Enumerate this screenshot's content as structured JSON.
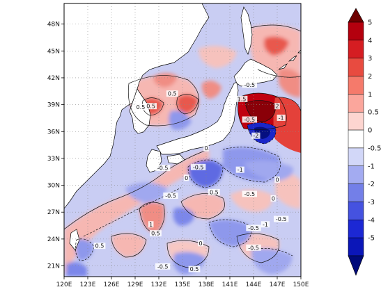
{
  "map": {
    "lon_ticks": [
      "120E",
      "123E",
      "126E",
      "129E",
      "132E",
      "135E",
      "138E",
      "141E",
      "144E",
      "147E",
      "150E"
    ],
    "lat_ticks": [
      "21N",
      "24N",
      "27N",
      "30N",
      "33N",
      "36N",
      "39N",
      "42N",
      "45N",
      "48N"
    ],
    "contour_labels": [
      {
        "text": "0.5",
        "lon": 133.7,
        "lat": 40.2
      },
      {
        "text": "0.5",
        "lon": 131.0,
        "lat": 38.8
      },
      {
        "text": "0.5",
        "lon": 129.7,
        "lat": 38.7
      },
      {
        "text": "-0.5",
        "lon": 143.5,
        "lat": 41.2
      },
      {
        "text": "1.5",
        "lon": 142.5,
        "lat": 39.6
      },
      {
        "text": "2",
        "lon": 147.0,
        "lat": 38.8
      },
      {
        "text": "-0.5",
        "lon": 143.5,
        "lat": 37.3
      },
      {
        "text": "-1",
        "lon": 147.5,
        "lat": 37.5
      },
      {
        "text": "-2",
        "lon": 144.3,
        "lat": 35.5
      },
      {
        "text": "0",
        "lon": 138.0,
        "lat": 34.1
      },
      {
        "text": "-0.5",
        "lon": 137.0,
        "lat": 32.0
      },
      {
        "text": "-0.5",
        "lon": 132.5,
        "lat": 31.9
      },
      {
        "text": "0",
        "lon": 135.5,
        "lat": 30.8
      },
      {
        "text": "-0.5",
        "lon": 133.5,
        "lat": 28.8
      },
      {
        "text": "0.5",
        "lon": 139.0,
        "lat": 29.2
      },
      {
        "text": "-0.5",
        "lon": 143.5,
        "lat": 29.0
      },
      {
        "text": "-1",
        "lon": 142.3,
        "lat": 31.7
      },
      {
        "text": "0",
        "lon": 147.0,
        "lat": 30.6
      },
      {
        "text": "1",
        "lon": 131.0,
        "lat": 25.6
      },
      {
        "text": "0.5",
        "lon": 131.6,
        "lat": 24.6
      },
      {
        "text": "-0.5",
        "lon": 144.0,
        "lat": 25.2
      },
      {
        "text": "-1",
        "lon": 145.5,
        "lat": 25.6
      },
      {
        "text": "-0.5",
        "lon": 147.5,
        "lat": 26.2
      },
      {
        "text": "0.5",
        "lon": 124.5,
        "lat": 23.2
      },
      {
        "text": "-0.5",
        "lon": 132.5,
        "lat": 20.9
      },
      {
        "text": "0.5",
        "lon": 136.5,
        "lat": 20.6
      },
      {
        "text": "0",
        "lon": 137.3,
        "lat": 23.5
      },
      {
        "text": "-0.5",
        "lon": 144.0,
        "lat": 23.0
      },
      {
        "text": "0",
        "lon": 146.5,
        "lat": 28.5
      }
    ]
  },
  "colorbar": {
    "levels": [
      "5",
      "4",
      "3",
      "2",
      "1",
      "0.5",
      "0",
      "-0.5",
      "-1",
      "-2",
      "-3",
      "-4",
      "-5"
    ],
    "colors": [
      "#b4000e",
      "#d51d22",
      "#e84b40",
      "#f57a6b",
      "#fba69c",
      "#fdd5d0",
      "#ffffff",
      "#d2d7f8",
      "#a3abf1",
      "#737fe8",
      "#4552e0",
      "#1c28d4",
      "#0b16b8"
    ],
    "top_tip": "#6e0000",
    "bottom_tip": "#000a7a"
  },
  "colors": {
    "land": "#ffffff",
    "ocean_base": "#c3c7f1",
    "coast": "#000000",
    "grid": "#888888"
  }
}
